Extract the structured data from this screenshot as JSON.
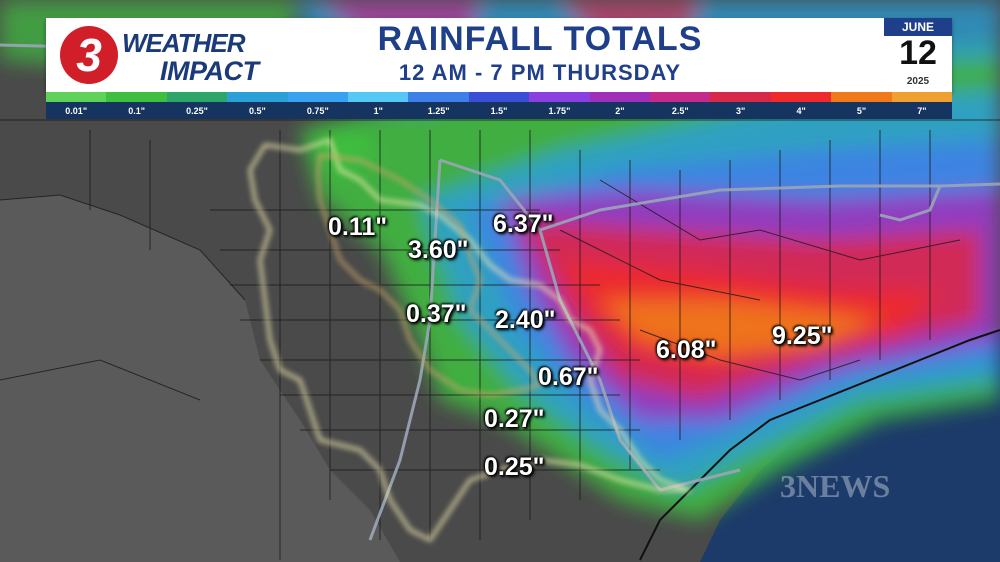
{
  "header": {
    "logo_number": "3",
    "logo_line1": "WEATHER",
    "logo_line2": "IMPACT",
    "title": "RAINFALL TOTALS",
    "subtitle": "12 AM - 7 PM THURSDAY",
    "date_month": "JUNE",
    "date_day": "12",
    "date_year": "2025"
  },
  "legend": {
    "labels": [
      "0.01\"",
      "0.1\"",
      "0.25\"",
      "0.5\"",
      "0.75\"",
      "1\"",
      "1.25\"",
      "1.5\"",
      "1.75\"",
      "2\"",
      "2.5\"",
      "3\"",
      "4\"",
      "5\"",
      "7\""
    ],
    "colors": [
      "#5fd25a",
      "#3fbf3f",
      "#2ea66a",
      "#2a9fd8",
      "#3aa0f0",
      "#55c8f5",
      "#3f7fe8",
      "#3a4fd6",
      "#8a3fe0",
      "#9f2fb8",
      "#c42a8a",
      "#d8284a",
      "#ee2a2a",
      "#f07a1a",
      "#f0a030"
    ]
  },
  "totals": [
    {
      "value": "0.11\""
    },
    {
      "value": "3.60\""
    },
    {
      "value": "6.37\""
    },
    {
      "value": "0.37\""
    },
    {
      "value": "2.40\""
    },
    {
      "value": "0.67\""
    },
    {
      "value": "0.27\""
    },
    {
      "value": "0.25\""
    },
    {
      "value": "6.08\""
    },
    {
      "value": "9.25\""
    }
  ],
  "watermark": "3NEWS"
}
